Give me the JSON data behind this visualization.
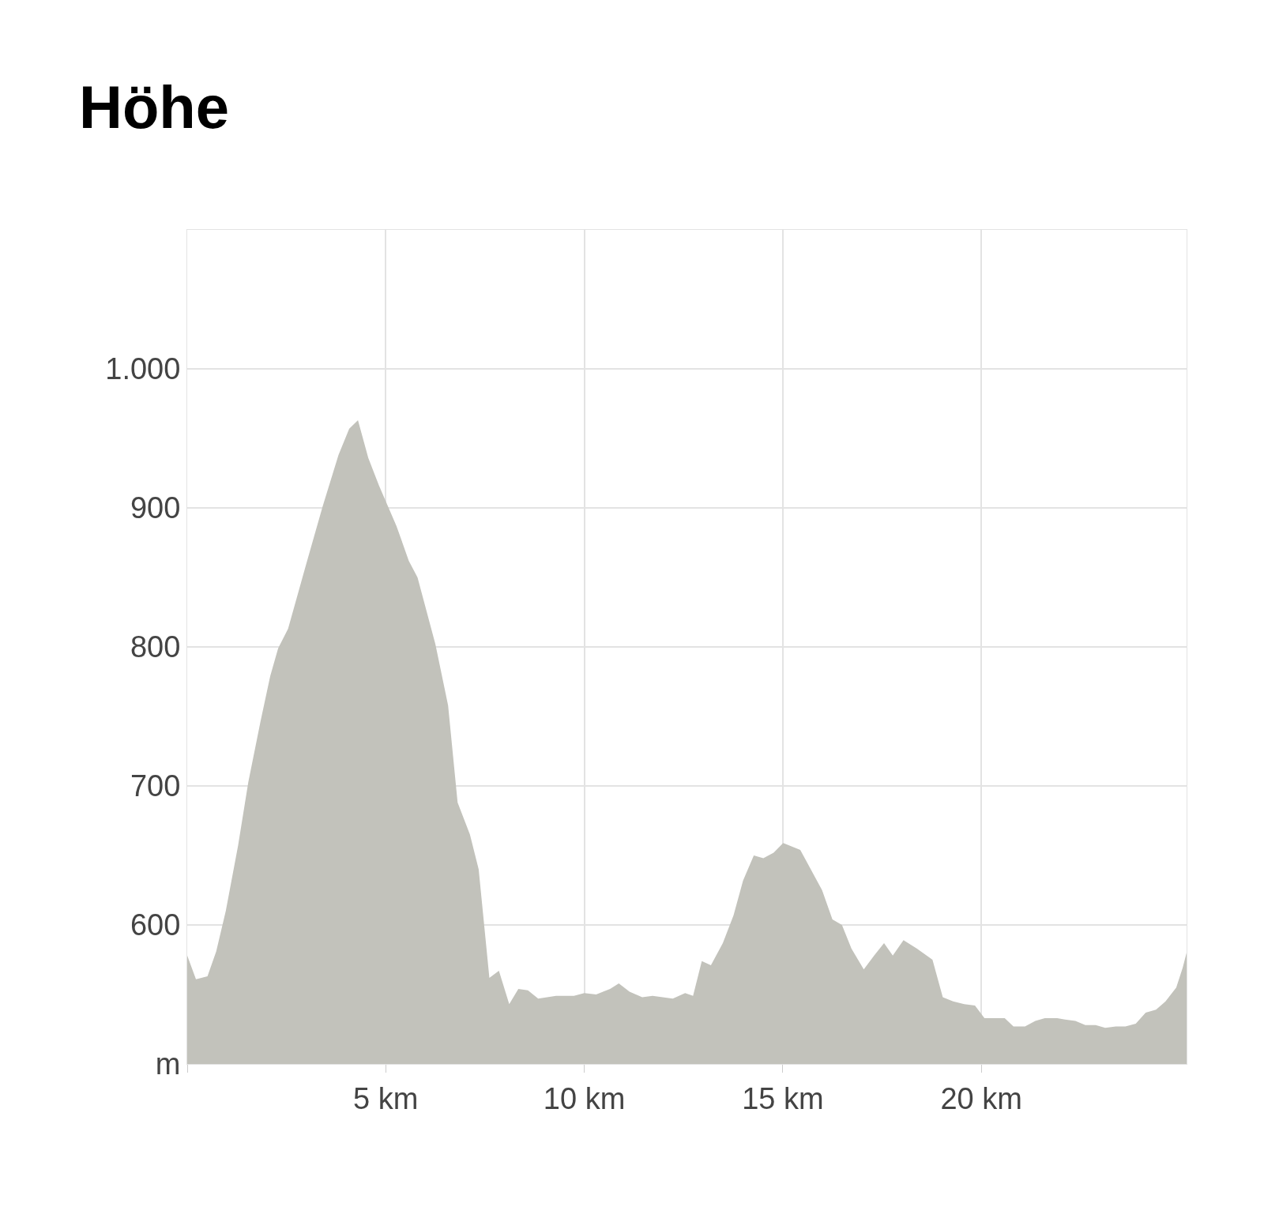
{
  "chart_data": {
    "type": "area",
    "title": "Höhe",
    "x": [
      0,
      0.22,
      0.51,
      0.73,
      0.97,
      1.28,
      1.54,
      1.85,
      2.09,
      2.29,
      2.54,
      3.0,
      3.41,
      3.81,
      4.08,
      4.3,
      4.56,
      4.83,
      5.27,
      5.58,
      5.8,
      6.25,
      6.57,
      6.81,
      7.12,
      7.34,
      7.61,
      7.85,
      8.11,
      8.34,
      8.58,
      8.84,
      9.29,
      9.74,
      10.0,
      10.3,
      10.65,
      10.87,
      11.14,
      11.46,
      11.72,
      12.23,
      12.54,
      12.74,
      12.96,
      13.19,
      13.49,
      13.76,
      14.0,
      14.27,
      14.51,
      14.77,
      15.01,
      15.44,
      15.99,
      16.25,
      16.49,
      16.73,
      17.04,
      17.3,
      17.55,
      17.77,
      18.04,
      18.38,
      18.77,
      19.03,
      19.29,
      19.57,
      19.84,
      20.08,
      20.59,
      20.81,
      21.1,
      21.36,
      21.6,
      21.91,
      22.11,
      22.37,
      22.62,
      22.88,
      23.12,
      23.39,
      23.63,
      23.89,
      24.14,
      24.4,
      24.64,
      24.91,
      25.07,
      25.17
    ],
    "series": [
      {
        "color": "#c2c2bb",
        "values": [
          578,
          561,
          563,
          581,
          610,
          657,
          703,
          747,
          779,
          799,
          813,
          860,
          901,
          938,
          957,
          963,
          936,
          916,
          887,
          862,
          850,
          802,
          758,
          688,
          665,
          640,
          562,
          567,
          543,
          554,
          553,
          547,
          549,
          549,
          551,
          550,
          554,
          558,
          552,
          548,
          549,
          547,
          551,
          549,
          574,
          571,
          587,
          607,
          632,
          650,
          648,
          652,
          659,
          654,
          625,
          604,
          600,
          583,
          568,
          578,
          587,
          578,
          589,
          583,
          575,
          548,
          545,
          543,
          542,
          533,
          533,
          527,
          527,
          531,
          533,
          533,
          532,
          531,
          528,
          528,
          526,
          527,
          527,
          529,
          537,
          539,
          545,
          555,
          569,
          580
        ]
      }
    ],
    "xlim": [
      0,
      25.17
    ],
    "xticks": [
      {
        "value": 0,
        "label": null
      },
      {
        "value": 5,
        "label": "5 km"
      },
      {
        "value": 10,
        "label": "10 km"
      },
      {
        "value": 15,
        "label": "15 km"
      },
      {
        "value": 20,
        "label": "20 km"
      }
    ],
    "ylim": [
      500,
      1100
    ],
    "yticks": [
      {
        "value": 500,
        "label": "m"
      },
      600,
      700,
      800,
      900,
      {
        "value": 1000,
        "label": "1.000"
      }
    ],
    "grid": true
  }
}
